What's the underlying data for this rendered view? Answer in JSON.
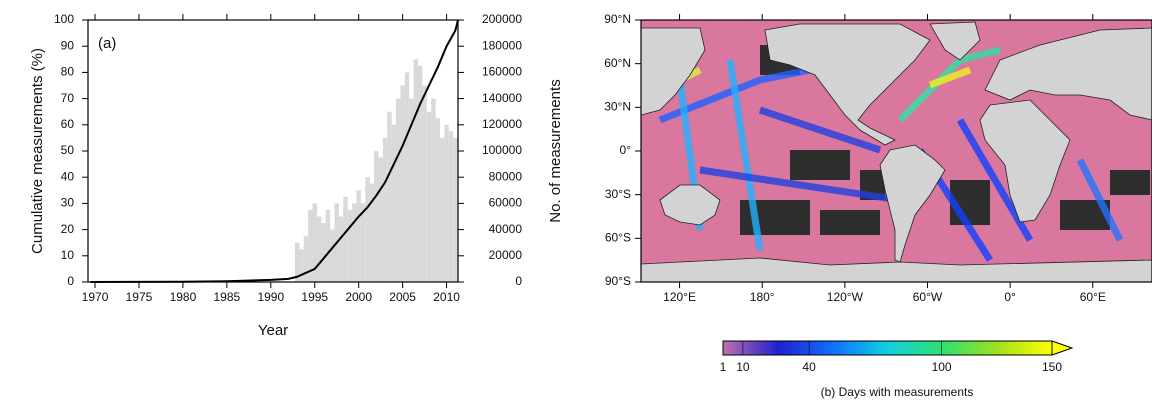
{
  "chart_data": [
    {
      "type": "bar_line",
      "annotation": "(a)",
      "xlabel": "Year",
      "ylabel": "Cumulative measurements (%)",
      "y2label": "No. of measurements",
      "xlim": [
        1969.2,
        2011.3
      ],
      "xticks": [
        1970,
        1975,
        1980,
        1985,
        1990,
        1995,
        2000,
        2005,
        2010
      ],
      "ylim": [
        0,
        100
      ],
      "yticks": [
        0,
        10,
        20,
        30,
        40,
        50,
        60,
        70,
        80,
        90,
        100
      ],
      "y2lim": [
        0,
        200000
      ],
      "y2ticks": [
        0,
        20000,
        40000,
        60000,
        80000,
        100000,
        120000,
        140000,
        160000,
        180000,
        200000
      ],
      "series": [
        {
          "kind": "bar",
          "axis": "y2",
          "color": "#d9d9d9",
          "x": [
            1993,
            1993.5,
            1994,
            1994.5,
            1995,
            1995.5,
            1996,
            1996.5,
            1997,
            1997.5,
            1998,
            1998.5,
            1999,
            1999.5,
            2000,
            2000.5,
            2001,
            2001.5,
            2002,
            2002.5,
            2003,
            2003.5,
            2004,
            2004.5,
            2005,
            2005.5,
            2006,
            2006.5,
            2007,
            2007.5,
            2008,
            2008.5,
            2009,
            2009.5,
            2010,
            2010.5,
            2011
          ],
          "values": [
            30000,
            25000,
            35000,
            55000,
            60000,
            50000,
            45000,
            55000,
            40000,
            60000,
            50000,
            65000,
            55000,
            60000,
            70000,
            60000,
            80000,
            75000,
            100000,
            95000,
            110000,
            130000,
            120000,
            140000,
            150000,
            160000,
            140000,
            170000,
            165000,
            150000,
            130000,
            140000,
            125000,
            110000,
            120000,
            115000,
            110000
          ]
        },
        {
          "kind": "line",
          "color": "#000000",
          "x": [
            1969.5,
            1980,
            1985,
            1990,
            1992,
            1993,
            1994,
            1995,
            1996,
            1997,
            1998,
            1999,
            2000,
            2001,
            2002,
            2003,
            2004,
            2005,
            2006,
            2007,
            2008,
            2009,
            2010,
            2011,
            2011.3
          ],
          "values": [
            0,
            0.1,
            0.3,
            0.8,
            1.2,
            2,
            3.5,
            5,
            9,
            13,
            17,
            21,
            25,
            28.5,
            33,
            38,
            45,
            52,
            60,
            68,
            75,
            82,
            90,
            96,
            100
          ]
        }
      ]
    },
    {
      "type": "map",
      "xlim": [
        92,
        463
      ],
      "ylim": [
        -90,
        90
      ],
      "xticks": [
        {
          "value": 120,
          "label": "120°E"
        },
        {
          "value": 180,
          "label": "180°"
        },
        {
          "value": -120,
          "label": "120°W"
        },
        {
          "value": -60,
          "label": "60°W"
        },
        {
          "value": 0,
          "label": "0°"
        },
        {
          "value": 60,
          "label": "60°E"
        }
      ],
      "yticks": [
        {
          "value": 90,
          "label": "90°N"
        },
        {
          "value": 60,
          "label": "60°N"
        },
        {
          "value": 30,
          "label": "30°N"
        },
        {
          "value": 0,
          "label": "0°"
        },
        {
          "value": -30,
          "label": "30°S"
        },
        {
          "value": -60,
          "label": "60°S"
        },
        {
          "value": -90,
          "label": "90°S"
        }
      ],
      "colorbar": {
        "label": "(b) Days with measurements",
        "clim": [
          1,
          150
        ],
        "ticks": [
          1,
          10,
          40,
          100,
          150
        ],
        "colormap": [
          "#c070b0",
          "#2020d0",
          "#1070ff",
          "#10d0e0",
          "#30e070",
          "#a0e020",
          "#ffff00"
        ]
      }
    }
  ]
}
